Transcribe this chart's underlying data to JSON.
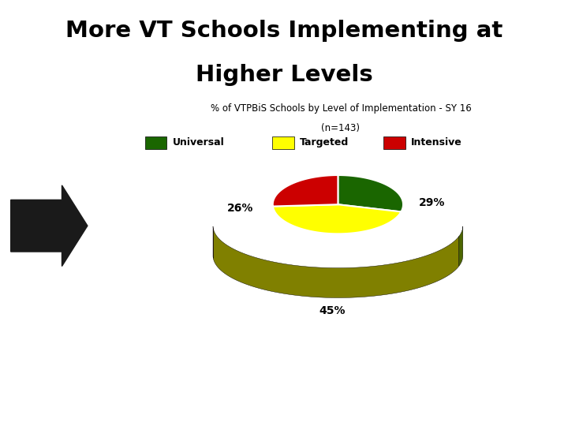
{
  "title_line1": "More VT Schools Implementing at",
  "title_line2": "Higher Levels",
  "title_bg_color": "#CC0000",
  "title_text_color": "#000000",
  "subtitle_line1": "% of VTPBiS Schools by Level of Implementation - SY 16",
  "subtitle_line2": "(n=143)",
  "slices": [
    29,
    45,
    26
  ],
  "slice_order": [
    "Universal",
    "Targeted",
    "Intensive"
  ],
  "colors": [
    "#1a6600",
    "#FFFF00",
    "#CC0000"
  ],
  "colors_3d": [
    "#4d6600",
    "#808000",
    "#660000"
  ],
  "pct_labels": [
    "29%",
    "45%",
    "26%"
  ],
  "legend_colors": [
    "#1a6600",
    "#FFFF00",
    "#CC0000"
  ],
  "legend_labels": [
    "Universal",
    "Targeted",
    "Intensive"
  ],
  "background_color": "#ffffff",
  "arrow_color": "#1a1a1a",
  "startangle": 90
}
